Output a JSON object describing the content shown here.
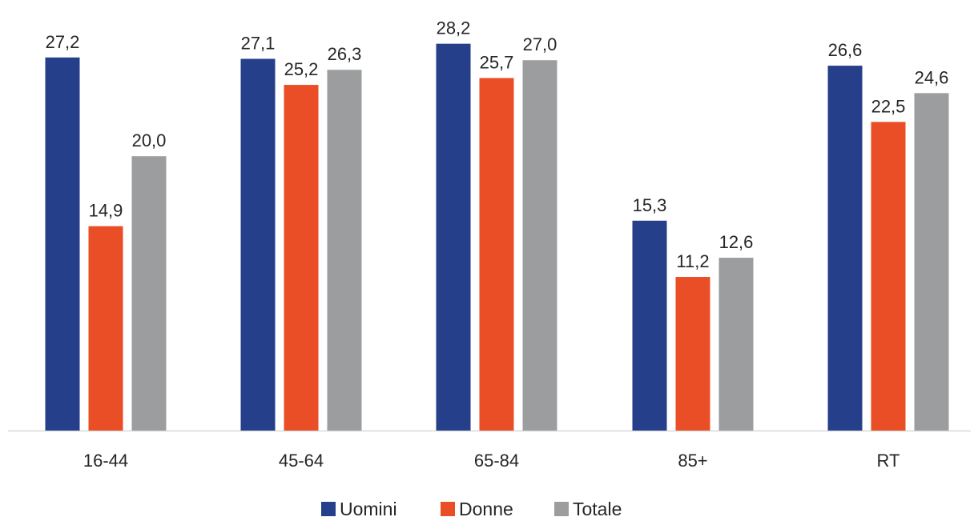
{
  "chart_data": {
    "type": "bar",
    "title": "",
    "xlabel": "",
    "ylabel": "",
    "categories": [
      "16-44",
      "45-64",
      "65-84",
      "85+",
      "RT"
    ],
    "series": [
      {
        "name": "Uomini",
        "color": "#253F8A",
        "values": [
          27.2,
          27.1,
          28.2,
          15.3,
          26.6
        ],
        "labels": [
          "27,2",
          "27,1",
          "28,2",
          "15,3",
          "26,6"
        ]
      },
      {
        "name": "Donne",
        "color": "#E94E26",
        "values": [
          14.9,
          25.2,
          25.7,
          11.2,
          22.5
        ],
        "labels": [
          "14,9",
          "25,2",
          "25,7",
          "11,2",
          "22,5"
        ]
      },
      {
        "name": "Totale",
        "color": "#9B9D9E",
        "values": [
          20.0,
          26.3,
          27.0,
          12.6,
          24.6
        ],
        "labels": [
          "20,0",
          "26,3",
          "27,0",
          "12,6",
          "24,6"
        ]
      }
    ],
    "ylim": [
      0,
      30
    ],
    "grid": false,
    "legend_position": "bottom"
  }
}
